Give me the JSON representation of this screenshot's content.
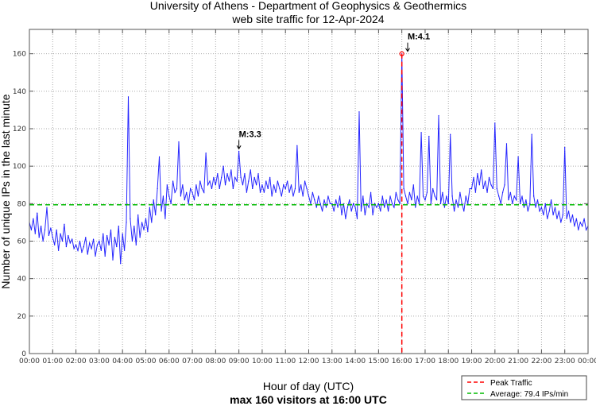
{
  "chart_data": {
    "type": "line",
    "title": [
      "University of Athens - Department of Geophysics & Geothermics",
      "web site traffic for 12-Apr-2024"
    ],
    "xlabel": "Hour of day (UTC)",
    "subtitle": "max 160 visitors at 16:00 UTC",
    "ylabel": "Number of unique IPs in the last minute",
    "xlim": [
      0,
      24
    ],
    "ylim": [
      0,
      173
    ],
    "grid": true,
    "x_ticks": [
      "00:00",
      "01:00",
      "02:00",
      "03:00",
      "04:00",
      "05:00",
      "06:00",
      "07:00",
      "08:00",
      "09:00",
      "10:00",
      "11:00",
      "12:00",
      "13:00",
      "14:00",
      "15:00",
      "16:00",
      "17:00",
      "18:00",
      "19:00",
      "20:00",
      "21:00",
      "22:00",
      "23:00",
      "00:00"
    ],
    "y_ticks": [
      0,
      20,
      40,
      60,
      80,
      100,
      120,
      140,
      160
    ],
    "sample_interval_minutes": 5,
    "series": [
      {
        "name": "Traffic",
        "color": "#0000ff",
        "values": [
          70,
          66,
          72,
          64,
          75,
          62,
          68,
          60,
          66,
          78,
          63,
          67,
          62,
          58,
          66,
          55,
          64,
          60,
          69,
          57,
          63,
          59,
          61,
          56,
          58,
          55,
          60,
          54,
          57,
          62,
          53,
          59,
          56,
          61,
          52,
          58,
          60,
          55,
          64,
          52,
          63,
          58,
          66,
          50,
          62,
          57,
          68,
          48,
          64,
          55,
          70,
          137,
          72,
          60,
          68,
          58,
          74,
          62,
          70,
          66,
          72,
          65,
          78,
          70,
          82,
          74,
          88,
          105,
          76,
          84,
          72,
          90,
          84,
          80,
          92,
          86,
          88,
          113,
          84,
          90,
          82,
          86,
          80,
          88,
          86,
          82,
          90,
          84,
          92,
          88,
          86,
          107,
          90,
          92,
          88,
          94,
          90,
          96,
          88,
          94,
          100,
          90,
          96,
          92,
          98,
          88,
          94,
          92,
          108,
          94,
          90,
          96,
          86,
          92,
          98,
          88,
          94,
          90,
          96,
          86,
          90,
          86,
          92,
          88,
          94,
          84,
          90,
          86,
          92,
          88,
          84,
          90,
          88,
          92,
          86,
          90,
          84,
          88,
          111,
          86,
          90,
          84,
          92,
          88,
          84,
          80,
          86,
          82,
          78,
          84,
          80,
          76,
          82,
          78,
          84,
          80,
          80,
          76,
          82,
          78,
          84,
          74,
          80,
          72,
          78,
          82,
          76,
          80,
          78,
          72,
          129,
          76,
          84,
          74,
          80,
          78,
          86,
          74,
          80,
          78,
          80,
          76,
          84,
          78,
          82,
          76,
          84,
          80,
          78,
          86,
          82,
          80,
          160,
          88,
          84,
          80,
          86,
          82,
          90,
          78,
          84,
          80,
          118,
          84,
          82,
          86,
          116,
          80,
          88,
          84,
          82,
          127,
          80,
          86,
          78,
          84,
          80,
          117,
          84,
          76,
          82,
          78,
          86,
          80,
          76,
          84,
          80,
          88,
          88,
          94,
          86,
          96,
          90,
          98,
          88,
          92,
          86,
          94,
          90,
          88,
          123,
          88,
          84,
          80,
          86,
          90,
          112,
          82,
          86,
          80,
          84,
          82,
          105,
          80,
          84,
          78,
          82,
          76,
          80,
          117,
          84,
          78,
          82,
          76,
          78,
          74,
          80,
          72,
          76,
          82,
          74,
          78,
          72,
          76,
          70,
          74,
          110,
          72,
          76,
          70,
          74,
          68,
          72,
          66,
          70,
          68,
          72,
          66,
          68
        ]
      }
    ],
    "average": {
      "value": 79.4,
      "color": "#00bb00"
    },
    "peak": {
      "hour": 16.0,
      "value": 160,
      "color": "#ff0000"
    },
    "annotations": [
      {
        "text": "M:3.3",
        "hour": 9.0,
        "value": 108
      },
      {
        "text": "M:4.1",
        "hour": 16.25,
        "value": 160
      }
    ],
    "legend": {
      "position": "bottom-right",
      "entries": [
        "Peak Traffic",
        "Average: 79.4 IPs/min"
      ]
    }
  }
}
